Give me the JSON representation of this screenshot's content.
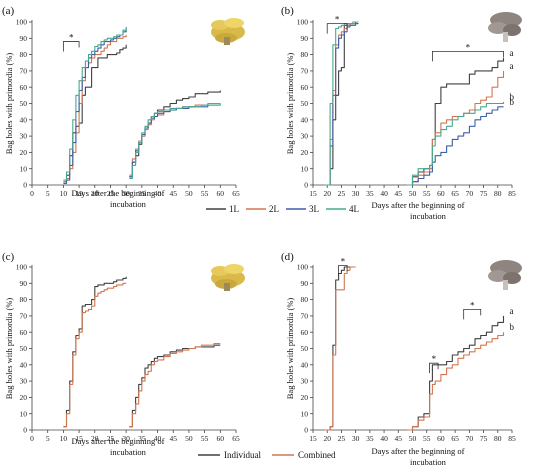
{
  "colors": {
    "1L": "#404040",
    "2L": "#d2764f",
    "3L": "#3c5fa8",
    "4L": "#49a78f",
    "Individual": "#404040",
    "Combined": "#d2764f"
  },
  "icons": {
    "a": "yellow-oyster-mushroom-photo",
    "b": "grey-oyster-mushroom-photo",
    "c": "yellow-oyster-mushroom-photo",
    "d": "grey-oyster-mushroom-photo"
  },
  "legend_top": [
    "1L",
    "2L",
    "3L",
    "4L"
  ],
  "legend_bottom": [
    "Individual",
    "Combined"
  ],
  "chart_data": [
    {
      "panel": "(a)",
      "type": "line",
      "xlabel": "Days after the beginning of incubation",
      "ylabel": "Bag holes with primordia (%)",
      "xlim": [
        0,
        65
      ],
      "ylim": [
        0,
        100
      ],
      "xstep": 5,
      "ystep": 10,
      "legend": "below",
      "annotations": [
        {
          "text": "*",
          "kind": "bracket",
          "x1": 10,
          "x2": 15,
          "y": 88
        }
      ],
      "series": [
        {
          "name": "1L",
          "color": "#404040",
          "x": [
            10,
            11,
            12,
            13,
            14,
            15,
            16,
            17,
            18,
            19,
            20,
            21,
            22,
            23,
            24,
            25,
            26,
            27,
            28,
            29,
            30,
            30,
            31,
            32,
            33,
            34,
            35,
            36,
            37,
            38,
            39,
            40,
            42,
            44,
            46,
            48,
            50,
            52,
            54,
            56,
            58,
            60
          ],
          "y": [
            2,
            6,
            18,
            32,
            36,
            38,
            55,
            60,
            60,
            72,
            72,
            78,
            78,
            78,
            80,
            80,
            80,
            81,
            83,
            84,
            86,
            null,
            5,
            14,
            18,
            25,
            30,
            35,
            38,
            42,
            44,
            46,
            48,
            50,
            52,
            53,
            54,
            56,
            56,
            57,
            57,
            58
          ]
        },
        {
          "name": "2L",
          "color": "#d2764f",
          "x": [
            10,
            11,
            12,
            13,
            14,
            15,
            16,
            17,
            18,
            19,
            20,
            21,
            22,
            23,
            24,
            25,
            26,
            27,
            28,
            29,
            30,
            30,
            31,
            32,
            33,
            34,
            35,
            36,
            37,
            38,
            39,
            40,
            42,
            44,
            46,
            48,
            50,
            52,
            54,
            56,
            58,
            60
          ],
          "y": [
            2,
            4,
            10,
            20,
            32,
            50,
            64,
            72,
            75,
            78,
            80,
            80,
            82,
            84,
            86,
            88,
            88,
            90,
            90,
            91,
            92,
            null,
            6,
            16,
            22,
            27,
            30,
            34,
            37,
            40,
            42,
            43,
            45,
            46,
            47,
            48,
            48,
            49,
            49,
            50,
            50,
            50
          ]
        },
        {
          "name": "3L",
          "color": "#3c5fa8",
          "x": [
            10,
            11,
            12,
            13,
            14,
            15,
            16,
            17,
            18,
            19,
            20,
            21,
            22,
            23,
            24,
            25,
            26,
            27,
            28,
            29,
            30,
            30,
            31,
            32,
            33,
            34,
            35,
            36,
            37,
            38,
            39,
            40,
            42,
            44,
            46,
            48,
            50,
            52,
            54,
            56,
            58,
            60
          ],
          "y": [
            1,
            3,
            12,
            26,
            45,
            58,
            66,
            72,
            78,
            80,
            82,
            84,
            86,
            88,
            88,
            89,
            90,
            91,
            92,
            94,
            96,
            null,
            5,
            14,
            21,
            26,
            31,
            35,
            38,
            41,
            42,
            44,
            45,
            46,
            47,
            47,
            48,
            48,
            48,
            49,
            49,
            49
          ]
        },
        {
          "name": "4L",
          "color": "#49a78f",
          "x": [
            10,
            11,
            12,
            13,
            14,
            15,
            16,
            17,
            18,
            19,
            20,
            21,
            22,
            23,
            24,
            25,
            26,
            27,
            28,
            29,
            30,
            30,
            31,
            32,
            33,
            34,
            35,
            36,
            37,
            38,
            39,
            40,
            42,
            44,
            46,
            48,
            50,
            52,
            54,
            56,
            58,
            60
          ],
          "y": [
            3,
            8,
            22,
            40,
            55,
            64,
            72,
            76,
            80,
            82,
            85,
            86,
            88,
            89,
            90,
            90,
            91,
            92,
            92,
            95,
            97,
            null,
            4,
            12,
            20,
            26,
            32,
            36,
            40,
            42,
            44,
            45,
            46,
            47,
            47,
            48,
            48,
            48,
            49,
            49,
            49,
            50
          ]
        }
      ]
    },
    {
      "panel": "(b)",
      "type": "line",
      "xlabel": "Days after the beginning of incubation",
      "ylabel": "Bag holes with primordia (%)",
      "xlim": [
        15,
        85
      ],
      "ylim": [
        0,
        100
      ],
      "xstep": 5,
      "ystep": 10,
      "annotations": [
        {
          "text": "*",
          "kind": "bracket",
          "x1": 20,
          "x2": 27,
          "y": 99
        },
        {
          "text": "*",
          "kind": "bracket",
          "x1": 57,
          "x2": 82,
          "y": 82
        },
        {
          "text": "a",
          "series": "1L"
        },
        {
          "text": "a",
          "series": "2L"
        },
        {
          "text": "b",
          "series": "4L"
        },
        {
          "text": "b",
          "series": "3L"
        }
      ],
      "series": [
        {
          "name": "1L",
          "color": "#404040",
          "x": [
            19,
            20,
            21,
            22,
            23,
            24,
            25,
            26,
            27,
            28,
            29,
            30,
            31,
            47,
            48,
            50,
            52,
            54,
            56,
            57,
            58,
            60,
            62,
            64,
            66,
            68,
            70,
            72,
            74,
            76,
            78,
            80,
            82
          ],
          "y": [
            0,
            0,
            10,
            40,
            55,
            70,
            72,
            98,
            99,
            99,
            99,
            100,
            100,
            null,
            0,
            5,
            8,
            10,
            12,
            28,
            50,
            60,
            62,
            62,
            62,
            62,
            68,
            70,
            70,
            70,
            72,
            76,
            78
          ]
        },
        {
          "name": "2L",
          "color": "#d2764f",
          "x": [
            19,
            20,
            21,
            22,
            23,
            24,
            25,
            26,
            27,
            28,
            29,
            30,
            31,
            47,
            48,
            50,
            52,
            54,
            56,
            57,
            58,
            60,
            62,
            64,
            66,
            68,
            70,
            72,
            74,
            76,
            78,
            80,
            82
          ],
          "y": [
            0,
            0,
            28,
            58,
            86,
            92,
            94,
            96,
            98,
            99,
            99,
            99,
            99,
            null,
            0,
            2,
            6,
            8,
            10,
            28,
            32,
            38,
            40,
            42,
            42,
            44,
            46,
            50,
            52,
            54,
            60,
            66,
            70
          ]
        },
        {
          "name": "3L",
          "color": "#3c5fa8",
          "x": [
            19,
            20,
            21,
            22,
            23,
            24,
            25,
            26,
            27,
            28,
            29,
            30,
            31,
            47,
            48,
            50,
            52,
            54,
            56,
            57,
            58,
            60,
            62,
            64,
            66,
            68,
            70,
            72,
            74,
            76,
            78,
            80,
            82
          ],
          "y": [
            0,
            0,
            24,
            55,
            84,
            90,
            92,
            94,
            97,
            98,
            98,
            99,
            99,
            null,
            0,
            2,
            4,
            6,
            8,
            14,
            18,
            20,
            24,
            28,
            30,
            32,
            36,
            40,
            42,
            44,
            46,
            48,
            48
          ]
        },
        {
          "name": "4L",
          "color": "#49a78f",
          "x": [
            19,
            20,
            21,
            22,
            23,
            24,
            25,
            26,
            27,
            28,
            29,
            30,
            31,
            47,
            48,
            50,
            52,
            54,
            56,
            57,
            58,
            60,
            62,
            64,
            66,
            68,
            70,
            72,
            74,
            76,
            78,
            80,
            82
          ],
          "y": [
            0,
            0,
            50,
            86,
            96,
            97,
            98,
            99,
            99,
            99,
            100,
            100,
            100,
            null,
            0,
            6,
            10,
            10,
            12,
            24,
            30,
            34,
            36,
            40,
            42,
            44,
            44,
            46,
            48,
            50,
            50,
            50,
            51
          ]
        }
      ]
    },
    {
      "panel": "(c)",
      "type": "line",
      "xlabel": "Days after the beginning of incubation",
      "ylabel": "Bag holes with primordia (%)",
      "xlim": [
        0,
        65
      ],
      "ylim": [
        0,
        100
      ],
      "xstep": 5,
      "ystep": 10,
      "legend": "below",
      "series": [
        {
          "name": "Individual",
          "color": "#404040",
          "x": [
            10,
            11,
            12,
            13,
            14,
            15,
            16,
            17,
            18,
            19,
            20,
            21,
            22,
            23,
            24,
            25,
            26,
            27,
            28,
            29,
            30,
            30,
            31,
            32,
            33,
            34,
            35,
            36,
            37,
            38,
            39,
            40,
            42,
            44,
            46,
            48,
            50,
            52,
            54,
            56,
            58,
            60
          ],
          "y": [
            2,
            12,
            30,
            48,
            58,
            62,
            76,
            77,
            77,
            80,
            88,
            89,
            89,
            90,
            90,
            90,
            91,
            92,
            92,
            93,
            94,
            null,
            2,
            12,
            20,
            28,
            32,
            38,
            40,
            42,
            44,
            45,
            46,
            48,
            49,
            50,
            50,
            51,
            51,
            51,
            52,
            52
          ]
        },
        {
          "name": "Combined",
          "color": "#d2764f",
          "x": [
            10,
            11,
            12,
            13,
            14,
            15,
            16,
            17,
            18,
            19,
            20,
            21,
            22,
            23,
            24,
            25,
            26,
            27,
            28,
            29,
            30,
            30,
            31,
            32,
            33,
            34,
            35,
            36,
            37,
            38,
            39,
            40,
            42,
            44,
            46,
            48,
            50,
            52,
            54,
            56,
            58,
            60
          ],
          "y": [
            2,
            10,
            28,
            46,
            56,
            60,
            72,
            73,
            74,
            76,
            82,
            84,
            85,
            86,
            87,
            87,
            88,
            89,
            89,
            90,
            90,
            null,
            2,
            10,
            16,
            24,
            30,
            34,
            36,
            40,
            42,
            43,
            45,
            47,
            48,
            49,
            50,
            51,
            52,
            52,
            53,
            53
          ]
        }
      ]
    },
    {
      "panel": "(d)",
      "type": "line",
      "xlabel": "Days after the beginning of incubation",
      "ylabel": "Bag holes with primordia (%)",
      "xlim": [
        15,
        85
      ],
      "ylim": [
        0,
        100
      ],
      "xstep": 5,
      "ystep": 10,
      "annotations": [
        {
          "text": "*",
          "kind": "bracket",
          "x1": 24,
          "x2": 27,
          "y": 101
        },
        {
          "text": "*",
          "kind": "bracket",
          "x1": 56,
          "x2": 59,
          "y": 41
        },
        {
          "text": "*",
          "kind": "bracket",
          "x1": 68,
          "x2": 74,
          "y": 74
        },
        {
          "text": "a",
          "series": "Individual"
        },
        {
          "text": "b",
          "series": "Combined"
        }
      ],
      "series": [
        {
          "name": "Individual",
          "color": "#404040",
          "x": [
            19,
            20,
            21,
            22,
            23,
            24,
            25,
            26,
            27,
            28,
            29,
            30,
            47,
            48,
            50,
            52,
            54,
            56,
            57,
            58,
            60,
            62,
            64,
            66,
            68,
            70,
            72,
            74,
            76,
            78,
            80,
            82
          ],
          "y": [
            0,
            0,
            2,
            52,
            92,
            96,
            98,
            100,
            100,
            100,
            100,
            100,
            null,
            0,
            2,
            8,
            10,
            30,
            40,
            40,
            40,
            42,
            46,
            48,
            50,
            52,
            56,
            58,
            60,
            64,
            66,
            70
          ]
        },
        {
          "name": "Combined",
          "color": "#d2764f",
          "x": [
            19,
            20,
            21,
            22,
            23,
            24,
            25,
            26,
            27,
            28,
            29,
            30,
            47,
            48,
            50,
            52,
            54,
            56,
            57,
            58,
            60,
            62,
            64,
            66,
            68,
            70,
            72,
            74,
            76,
            78,
            80,
            82
          ],
          "y": [
            0,
            0,
            2,
            46,
            86,
            86,
            86,
            96,
            98,
            100,
            100,
            100,
            null,
            0,
            2,
            6,
            8,
            22,
            28,
            30,
            34,
            38,
            40,
            44,
            46,
            48,
            50,
            52,
            54,
            56,
            58,
            60
          ]
        }
      ]
    }
  ]
}
